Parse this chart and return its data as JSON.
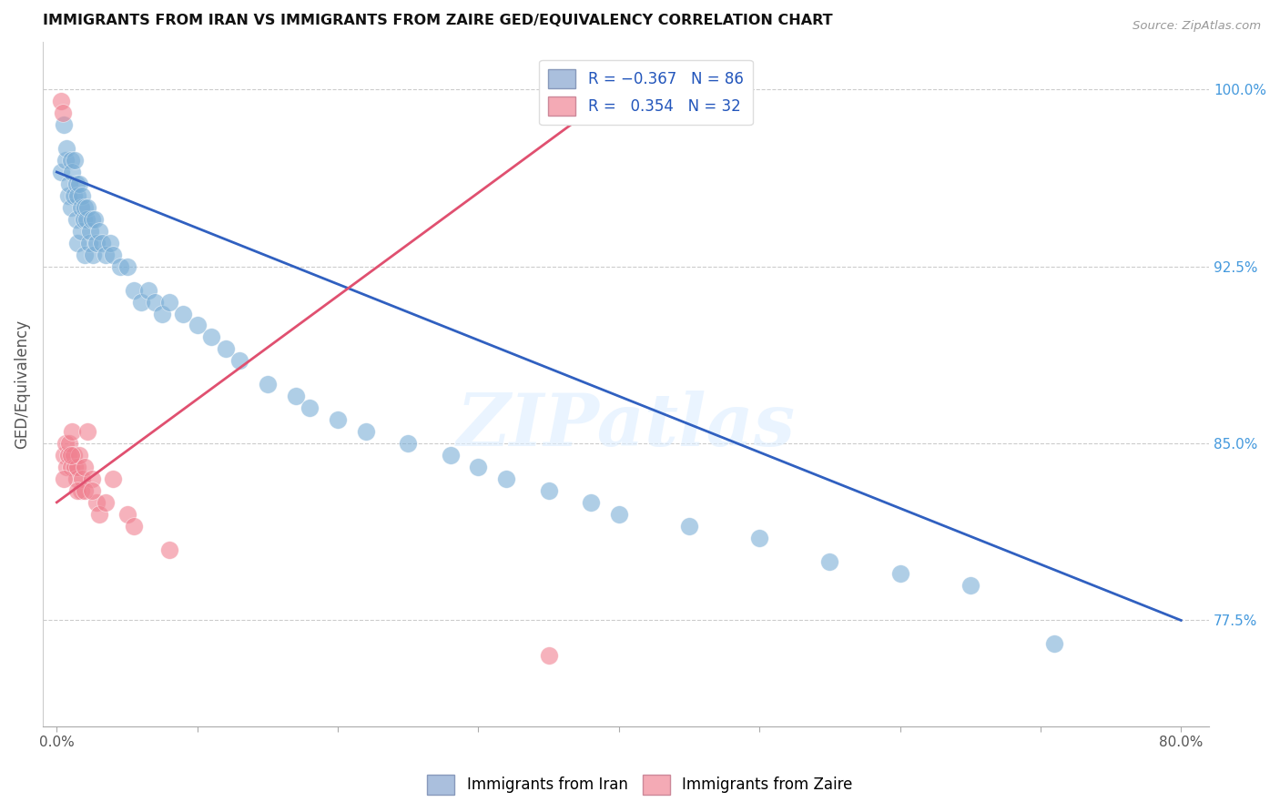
{
  "title": "IMMIGRANTS FROM IRAN VS IMMIGRANTS FROM ZAIRE GED/EQUIVALENCY CORRELATION CHART",
  "source": "Source: ZipAtlas.com",
  "ylabel": "GED/Equivalency",
  "x_tick_labels": [
    "0.0%",
    "",
    "",
    "",
    "",
    "",
    "80.0%"
  ],
  "x_tick_vals": [
    0.0,
    10.0,
    20.0,
    30.0,
    40.0,
    50.0,
    80.0
  ],
  "x_minor_ticks": [
    10.0,
    20.0,
    30.0,
    40.0,
    50.0,
    60.0,
    70.0
  ],
  "y_tick_labels_right": [
    "100.0%",
    "92.5%",
    "85.0%",
    "77.5%"
  ],
  "y_tick_vals_right": [
    100.0,
    92.5,
    85.0,
    77.5
  ],
  "xlim": [
    -1.0,
    82.0
  ],
  "ylim": [
    73.0,
    102.0
  ],
  "legend1_color": "#aabfdd",
  "legend2_color": "#f4aab5",
  "iran_color": "#7aaed6",
  "zaire_color": "#f08090",
  "trend_iran_color": "#3060c0",
  "trend_zaire_color": "#e05070",
  "watermark": "ZIPatlas",
  "iran_x": [
    0.3,
    0.5,
    0.6,
    0.7,
    0.8,
    0.9,
    1.0,
    1.0,
    1.1,
    1.2,
    1.3,
    1.4,
    1.4,
    1.5,
    1.5,
    1.6,
    1.7,
    1.7,
    1.8,
    1.9,
    2.0,
    2.0,
    2.1,
    2.2,
    2.3,
    2.4,
    2.5,
    2.6,
    2.7,
    2.8,
    3.0,
    3.2,
    3.5,
    3.8,
    4.0,
    4.5,
    5.0,
    5.5,
    6.0,
    6.5,
    7.0,
    7.5,
    8.0,
    9.0,
    10.0,
    11.0,
    12.0,
    13.0,
    15.0,
    17.0,
    18.0,
    20.0,
    22.0,
    25.0,
    28.0,
    30.0,
    32.0,
    35.0,
    38.0,
    40.0,
    45.0,
    50.0,
    55.0,
    60.0,
    65.0,
    71.0
  ],
  "iran_y": [
    96.5,
    98.5,
    97.0,
    97.5,
    95.5,
    96.0,
    97.0,
    95.0,
    96.5,
    95.5,
    97.0,
    96.0,
    94.5,
    95.5,
    93.5,
    96.0,
    95.0,
    94.0,
    95.5,
    94.5,
    95.0,
    93.0,
    94.5,
    95.0,
    93.5,
    94.0,
    94.5,
    93.0,
    94.5,
    93.5,
    94.0,
    93.5,
    93.0,
    93.5,
    93.0,
    92.5,
    92.5,
    91.5,
    91.0,
    91.5,
    91.0,
    90.5,
    91.0,
    90.5,
    90.0,
    89.5,
    89.0,
    88.5,
    87.5,
    87.0,
    86.5,
    86.0,
    85.5,
    85.0,
    84.5,
    84.0,
    83.5,
    83.0,
    82.5,
    82.0,
    81.5,
    81.0,
    80.0,
    79.5,
    79.0,
    76.5
  ],
  "zaire_x": [
    0.3,
    0.4,
    0.5,
    0.6,
    0.7,
    0.8,
    0.9,
    1.0,
    1.1,
    1.2,
    1.3,
    1.4,
    1.5,
    1.6,
    1.7,
    1.8,
    2.0,
    2.2,
    2.5,
    2.8,
    3.0,
    4.0,
    5.0,
    1.5,
    2.0,
    3.5,
    1.0,
    0.5,
    35.0,
    5.5,
    8.0,
    2.5
  ],
  "zaire_y": [
    99.5,
    99.0,
    84.5,
    85.0,
    84.0,
    84.5,
    85.0,
    84.0,
    85.5,
    84.5,
    84.0,
    83.5,
    84.0,
    84.5,
    83.0,
    83.5,
    84.0,
    85.5,
    83.5,
    82.5,
    82.0,
    83.5,
    82.0,
    83.0,
    83.0,
    82.5,
    84.5,
    83.5,
    76.0,
    81.5,
    80.5,
    83.0
  ],
  "trend_iran_x0": 0.0,
  "trend_iran_x1": 80.0,
  "trend_iran_y0": 96.5,
  "trend_iran_y1": 77.5,
  "trend_zaire_x0": 0.0,
  "trend_zaire_x1": 40.0,
  "trend_zaire_y0": 82.5,
  "trend_zaire_y1": 100.0
}
